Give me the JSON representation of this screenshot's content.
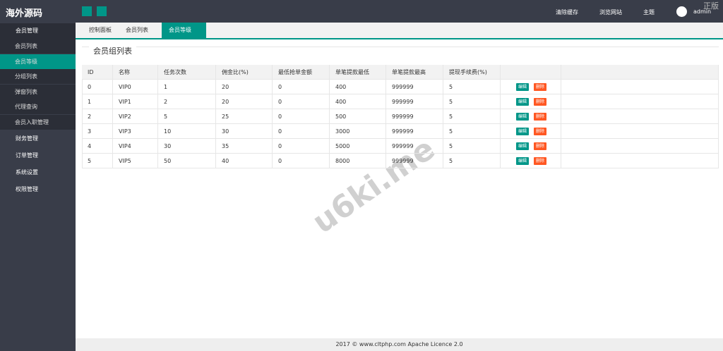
{
  "header": {
    "logo": "海外源码",
    "links": [
      "清除缓存",
      "浏览网站",
      "主题"
    ],
    "user": "admin",
    "badge": "正版"
  },
  "sidebar": {
    "groups": [
      {
        "label": "会员管理",
        "items": [
          "会员列表",
          "会员等级",
          "分组列表",
          "弹窗列表",
          "代理查询",
          "会员入职管理"
        ]
      },
      {
        "label": "财务管理"
      },
      {
        "label": "订单管理"
      },
      {
        "label": "系统设置"
      },
      {
        "label": "权限管理"
      }
    ]
  },
  "tabs": [
    "控制面板",
    "会员列表",
    "会员等级"
  ],
  "section_title": "会员组列表",
  "table": {
    "headers": [
      "ID",
      "名称",
      "任务次数",
      "佣金比(%)",
      "最低抢单金额",
      "单笔提款最低",
      "单笔提款最高",
      "提现手续费(%)"
    ],
    "rows": [
      [
        "0",
        "VIP0",
        "1",
        "20",
        "0",
        "400",
        "999999",
        "5"
      ],
      [
        "1",
        "VIP1",
        "2",
        "20",
        "0",
        "400",
        "999999",
        "5"
      ],
      [
        "2",
        "VIP2",
        "5",
        "25",
        "0",
        "500",
        "999999",
        "5"
      ],
      [
        "3",
        "VIP3",
        "10",
        "30",
        "0",
        "3000",
        "999999",
        "5"
      ],
      [
        "4",
        "VIP4",
        "30",
        "35",
        "0",
        "5000",
        "999999",
        "5"
      ],
      [
        "5",
        "VIP5",
        "50",
        "40",
        "0",
        "8000",
        "999999",
        "5"
      ]
    ],
    "actions": [
      "编辑",
      "删除"
    ]
  },
  "watermark": "u6ki.me",
  "footer": "2017 ©  www.cltphp.com  Apache Licence 2.0"
}
